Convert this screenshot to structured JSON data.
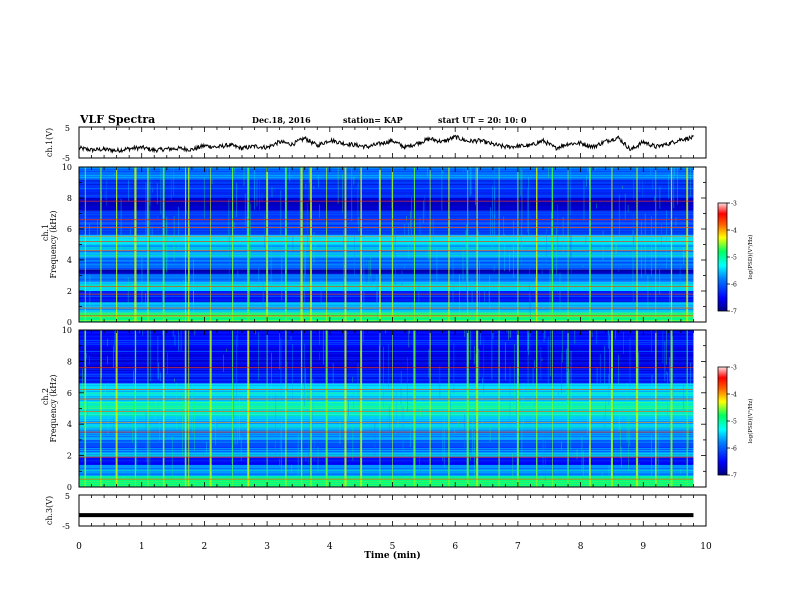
{
  "header": {
    "title": "VLF Spectra",
    "date": "Dec.18, 2016",
    "station": "station= KAP",
    "start": "start  UT =   20: 10: 0"
  },
  "colors": {
    "trace": "#000000",
    "colormap": [
      "#000080",
      "#0000ff",
      "#0080ff",
      "#00c8ff",
      "#00ffff",
      "#00ff80",
      "#80ff00",
      "#ffff00",
      "#ff8000",
      "#ff0000",
      "#ff8080",
      "#ffffff"
    ]
  },
  "chart_data": [
    {
      "type": "line",
      "panel": "ch1-waveform",
      "ylabel": "ch.1(V)",
      "ylim": [
        -5,
        5
      ],
      "y_ticklabels": [
        "5",
        "-5"
      ],
      "xlim": [
        0,
        10
      ],
      "x": [
        0,
        0.2,
        0.4,
        0.6,
        0.8,
        1.0,
        1.2,
        1.4,
        1.6,
        1.8,
        2.0,
        2.2,
        2.4,
        2.6,
        2.8,
        3.0,
        3.2,
        3.4,
        3.6,
        3.8,
        4.0,
        4.2,
        4.4,
        4.6,
        4.8,
        5.0,
        5.2,
        5.4,
        5.6,
        5.8,
        6.0,
        6.2,
        6.4,
        6.6,
        6.8,
        7.0,
        7.2,
        7.4,
        7.6,
        7.8,
        8.0,
        8.2,
        8.4,
        8.6,
        8.8,
        9.0,
        9.2,
        9.4,
        9.6,
        9.8
      ],
      "values": [
        -1.8,
        -2.4,
        -2.2,
        -2.6,
        -2.0,
        -1.6,
        -2.5,
        -2.1,
        -1.9,
        -2.3,
        -1.0,
        -1.5,
        -0.8,
        -1.9,
        -1.2,
        -1.6,
        0.2,
        -0.6,
        1.4,
        -1.0,
        0.8,
        -0.2,
        -0.8,
        -1.4,
        -0.4,
        0.6,
        -1.6,
        -0.2,
        1.2,
        0.2,
        1.8,
        0.4,
        0.6,
        -0.6,
        -1.4,
        -1.2,
        -1.0,
        0.6,
        -1.8,
        -0.4,
        -0.2,
        -1.4,
        0.4,
        1.6,
        -2.4,
        0.2,
        -1.4,
        -0.4,
        1.0,
        1.6
      ]
    },
    {
      "type": "heatmap",
      "panel": "ch1-spectrogram",
      "ylabel": "ch.1 Frequency (kHz)",
      "xlim": [
        0,
        10
      ],
      "ylim": [
        0,
        10
      ],
      "y_ticks": [
        0,
        2,
        4,
        6,
        8,
        10
      ],
      "x_extent": [
        0,
        9.8
      ],
      "colorbar": {
        "label": "log(PSD)(V²/Hz)",
        "ticklabels": [
          "-3",
          "-4",
          "-5",
          "-6",
          "-7"
        ],
        "range": [
          -7,
          -3
        ]
      },
      "bands": [
        {
          "f_from": 0.0,
          "f_to": 0.6,
          "level": 0.55
        },
        {
          "f_from": 0.6,
          "f_to": 1.3,
          "level": 0.4
        },
        {
          "f_from": 1.3,
          "f_to": 2.0,
          "level": 0.18
        },
        {
          "f_from": 2.0,
          "f_to": 2.6,
          "level": 0.42
        },
        {
          "f_from": 2.6,
          "f_to": 3.1,
          "level": 0.3
        },
        {
          "f_from": 3.1,
          "f_to": 3.4,
          "level": 0.05
        },
        {
          "f_from": 3.4,
          "f_to": 4.2,
          "level": 0.3
        },
        {
          "f_from": 4.2,
          "f_to": 5.0,
          "level": 0.38
        },
        {
          "f_from": 5.0,
          "f_to": 5.6,
          "level": 0.45
        },
        {
          "f_from": 5.6,
          "f_to": 6.4,
          "level": 0.26
        },
        {
          "f_from": 6.4,
          "f_to": 7.2,
          "level": 0.22
        },
        {
          "f_from": 7.2,
          "f_to": 8.0,
          "level": 0.08
        },
        {
          "f_from": 8.0,
          "f_to": 9.2,
          "level": 0.22
        },
        {
          "f_from": 9.2,
          "f_to": 10.0,
          "level": 0.3
        }
      ],
      "lines_khz": [
        0.4,
        0.9,
        1.8,
        2.3,
        4.6,
        5.2,
        5.5,
        6.1,
        6.6,
        7.8
      ],
      "bursts_min": [
        0.1,
        0.35,
        0.6,
        0.9,
        1.1,
        1.35,
        1.7,
        1.75,
        2.1,
        2.45,
        2.7,
        3.0,
        3.3,
        3.55,
        3.7,
        3.95,
        4.25,
        4.5,
        4.8,
        5.0,
        5.35,
        5.6,
        5.9,
        6.2,
        6.35,
        6.7,
        7.0,
        7.3,
        7.55,
        7.8,
        8.15,
        8.5,
        8.9,
        9.2,
        9.45,
        9.7
      ]
    },
    {
      "type": "heatmap",
      "panel": "ch2-spectrogram",
      "ylabel": "ch.2 Frequency (kHz)",
      "xlim": [
        0,
        10
      ],
      "ylim": [
        0,
        10
      ],
      "y_ticks": [
        0,
        2,
        4,
        6,
        8,
        10
      ],
      "x_extent": [
        0,
        9.8
      ],
      "colorbar": {
        "label": "log(PSD)(V²/Hz)",
        "ticklabels": [
          "-3",
          "-4",
          "-5",
          "-6",
          "-7"
        ],
        "range": [
          -7,
          -3
        ]
      },
      "bands": [
        {
          "f_from": 0.0,
          "f_to": 0.7,
          "level": 0.55
        },
        {
          "f_from": 0.7,
          "f_to": 1.4,
          "level": 0.35
        },
        {
          "f_from": 1.4,
          "f_to": 1.9,
          "level": 0.14
        },
        {
          "f_from": 1.9,
          "f_to": 2.5,
          "level": 0.36
        },
        {
          "f_from": 2.5,
          "f_to": 3.0,
          "level": 0.25
        },
        {
          "f_from": 3.0,
          "f_to": 3.8,
          "level": 0.36
        },
        {
          "f_from": 3.8,
          "f_to": 4.6,
          "level": 0.42
        },
        {
          "f_from": 4.6,
          "f_to": 5.4,
          "level": 0.5
        },
        {
          "f_from": 5.4,
          "f_to": 6.6,
          "level": 0.44
        },
        {
          "f_from": 6.6,
          "f_to": 7.6,
          "level": 0.18
        },
        {
          "f_from": 7.6,
          "f_to": 8.6,
          "level": 0.12
        },
        {
          "f_from": 8.6,
          "f_to": 10.0,
          "level": 0.16
        }
      ],
      "lines_khz": [
        0.5,
        1.9,
        3.5,
        4.1,
        4.8,
        5.6,
        6.2,
        7.6
      ],
      "bursts_min": [
        0.1,
        0.35,
        0.6,
        0.9,
        1.1,
        1.35,
        1.7,
        1.75,
        2.1,
        2.45,
        2.7,
        3.0,
        3.3,
        3.55,
        3.7,
        3.95,
        4.25,
        4.5,
        4.8,
        5.0,
        5.35,
        5.6,
        5.9,
        6.2,
        6.35,
        6.7,
        7.0,
        7.3,
        7.55,
        7.8,
        8.15,
        8.5,
        8.9,
        9.2,
        9.45,
        9.7
      ]
    },
    {
      "type": "line",
      "panel": "ch3-waveform",
      "ylabel": "ch.3(V)",
      "ylim": [
        -5,
        5
      ],
      "y_ticklabels": [
        "5",
        "-5"
      ],
      "xlim": [
        0,
        10
      ],
      "x": [
        0,
        9.8
      ],
      "values": [
        -1.5,
        -1.5
      ],
      "xlabel": "Time (min)",
      "x_ticklabels": [
        "0",
        "1",
        "2",
        "3",
        "4",
        "5",
        "6",
        "7",
        "8",
        "9",
        "10"
      ]
    }
  ]
}
